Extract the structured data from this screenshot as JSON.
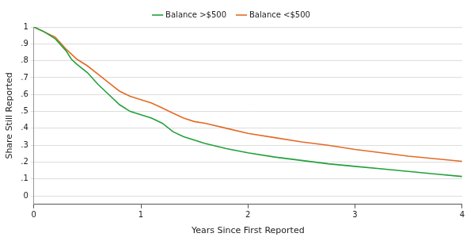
{
  "chart_data": {
    "type": "line",
    "x_label": "Years Since First Reported",
    "y_label": "Share Still Reported",
    "x": [
      0,
      0.1,
      0.2,
      0.3,
      0.35,
      0.4,
      0.5,
      0.6,
      0.7,
      0.8,
      0.9,
      1.0,
      1.1,
      1.2,
      1.3,
      1.4,
      1.5,
      1.6,
      1.8,
      2.0,
      2.25,
      2.5,
      2.75,
      3.0,
      3.25,
      3.5,
      3.75,
      4.0
    ],
    "series": [
      {
        "name": "Balance >$500",
        "color": "#23a03a",
        "values": [
          1,
          0.97,
          0.93,
          0.86,
          0.81,
          0.78,
          0.73,
          0.66,
          0.6,
          0.54,
          0.5,
          0.48,
          0.46,
          0.43,
          0.38,
          0.35,
          0.33,
          0.31,
          0.28,
          0.255,
          0.23,
          0.21,
          0.19,
          0.175,
          0.16,
          0.145,
          0.13,
          0.115
        ]
      },
      {
        "name": "Balance <$500",
        "color": "#e46a26",
        "values": [
          1,
          0.97,
          0.94,
          0.87,
          0.84,
          0.81,
          0.77,
          0.72,
          0.67,
          0.62,
          0.59,
          0.57,
          0.55,
          0.52,
          0.49,
          0.46,
          0.44,
          0.43,
          0.4,
          0.37,
          0.345,
          0.32,
          0.3,
          0.275,
          0.255,
          0.235,
          0.22,
          0.205
        ]
      }
    ],
    "xlim": [
      0,
      4
    ],
    "xticks": [
      0,
      1,
      2,
      3,
      4
    ],
    "ylim": [
      -0.05,
      1
    ],
    "yticks": [
      0,
      {
        "value": 0.1,
        "label": ".1"
      },
      {
        "value": 0.2,
        "label": ".2"
      },
      {
        "value": 0.3,
        "label": ".3"
      },
      {
        "value": 0.4,
        "label": ".4"
      },
      {
        "value": 0.5,
        "label": ".5"
      },
      {
        "value": 0.6,
        "label": ".6"
      },
      {
        "value": 0.7,
        "label": ".7"
      },
      {
        "value": 0.8,
        "label": ".8"
      },
      {
        "value": 0.9,
        "label": ".9"
      },
      1
    ],
    "grid": true,
    "legend": "top"
  }
}
